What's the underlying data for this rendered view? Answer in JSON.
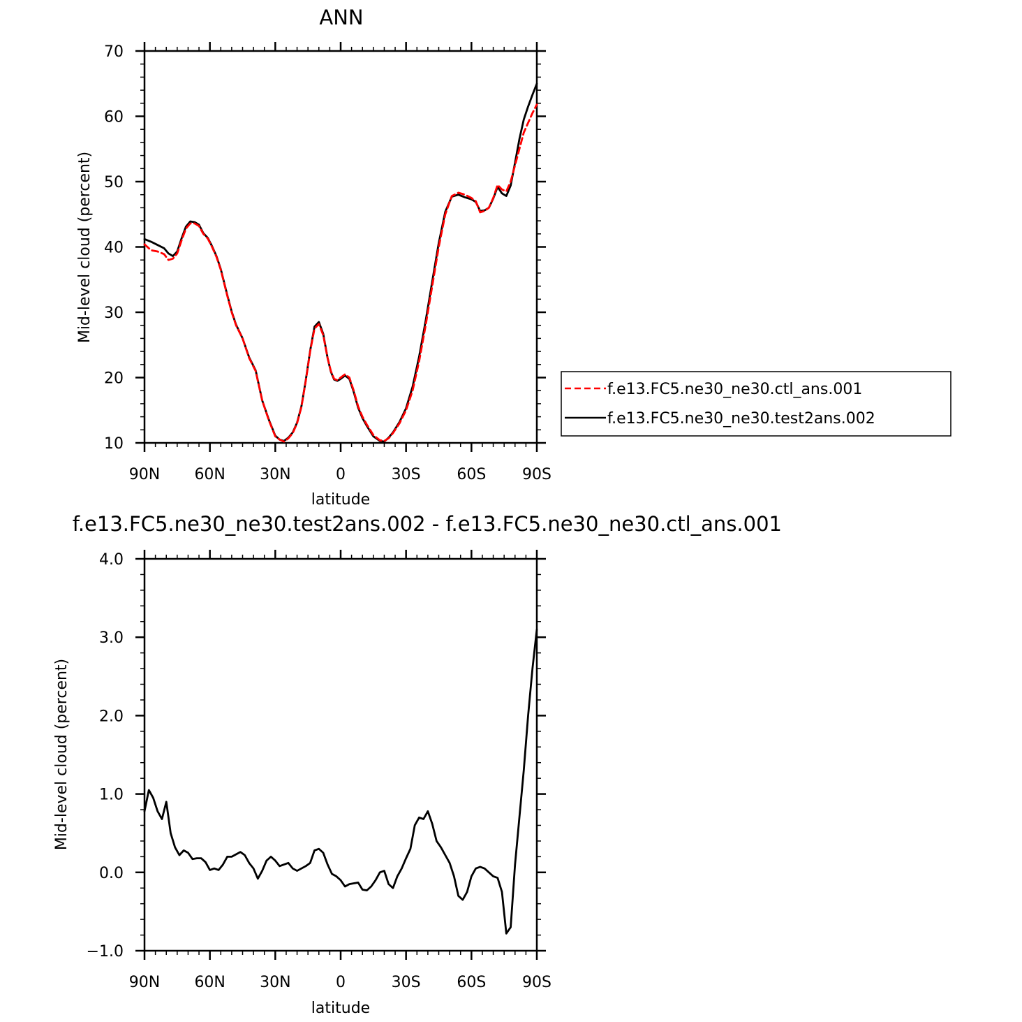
{
  "chart_data": [
    {
      "type": "line",
      "title": "ANN",
      "xlabel": "latitude",
      "ylabel": "Mid-level cloud (percent)",
      "xlim": [
        90,
        -90
      ],
      "ylim": [
        10,
        70
      ],
      "xticks": [
        90,
        60,
        30,
        0,
        -30,
        -60,
        -90
      ],
      "xtick_labels": [
        "90N",
        "60N",
        "30N",
        "0",
        "30S",
        "60S",
        "90S"
      ],
      "yticks": [
        10,
        20,
        30,
        40,
        50,
        60,
        70
      ],
      "ytick_labels": [
        "10",
        "20",
        "30",
        "40",
        "50",
        "60",
        "70"
      ],
      "grid": false,
      "legend_position": "right",
      "series": [
        {
          "name": "f.e13.FC5.ne30_ne30.ctl_ans.001",
          "color": "#ff0000",
          "dash": "dashed",
          "x": [
            90,
            87,
            84,
            81,
            79,
            77,
            75,
            73,
            71,
            69,
            67,
            65,
            63,
            61,
            59,
            57,
            55,
            52,
            50,
            48,
            45,
            42,
            39,
            36,
            33,
            30,
            28,
            26,
            24,
            22,
            20,
            18,
            16,
            14,
            12,
            10,
            8,
            6,
            4.5,
            3,
            1.5,
            0,
            -2,
            -4,
            -6,
            -8,
            -10,
            -12,
            -15,
            -18,
            -20,
            -22,
            -24,
            -27,
            -30,
            -33,
            -36,
            -39,
            -42,
            -45,
            -48,
            -51,
            -54,
            -57,
            -60,
            -62,
            -64,
            -66,
            -68,
            -70,
            -72,
            -74,
            -76,
            -78,
            -80,
            -82,
            -84,
            -86,
            -88,
            -90
          ],
          "y": [
            40.4,
            39.5,
            39.3,
            38.9,
            38.0,
            38.2,
            39.0,
            41.0,
            42.8,
            43.6,
            43.6,
            43.2,
            42.0,
            41.3,
            40.0,
            38.5,
            36.5,
            32.5,
            30.0,
            28.0,
            26.0,
            23.0,
            21.0,
            16.5,
            13.5,
            11.0,
            10.5,
            10.2,
            10.7,
            11.5,
            13.0,
            15.5,
            19.5,
            24.0,
            27.5,
            28.2,
            26.5,
            23.0,
            21.0,
            19.8,
            19.6,
            20.0,
            20.5,
            20.0,
            18.0,
            15.6,
            14.0,
            12.8,
            11.2,
            10.4,
            10.3,
            10.7,
            11.5,
            13.0,
            15.0,
            18.0,
            22.5,
            28.0,
            34.0,
            40.0,
            45.0,
            47.8,
            48.3,
            48.0,
            47.5,
            47.0,
            45.3,
            45.5,
            46.0,
            47.5,
            49.5,
            48.8,
            48.5,
            50.0,
            52.5,
            55.0,
            57.5,
            59.0,
            60.5,
            61.8
          ]
        },
        {
          "name": "f.e13.FC5.ne30_ne30.test2ans.002",
          "color": "#000000",
          "dash": "solid",
          "x": [
            90,
            87,
            84,
            81,
            79,
            77,
            75,
            73,
            71,
            69,
            67,
            65,
            63,
            61,
            59,
            57,
            55,
            52,
            50,
            48,
            45,
            42,
            39,
            36,
            33,
            30,
            28,
            26,
            24,
            22,
            20,
            18,
            16,
            14,
            12,
            10,
            8,
            6,
            4.5,
            3,
            1.5,
            0,
            -2,
            -4,
            -6,
            -8,
            -10,
            -12,
            -15,
            -18,
            -20,
            -22,
            -24,
            -27,
            -30,
            -33,
            -36,
            -39,
            -42,
            -45,
            -48,
            -51,
            -54,
            -57,
            -60,
            -62,
            -64,
            -66,
            -68,
            -70,
            -72,
            -74,
            -76,
            -78,
            -80,
            -82,
            -84,
            -86,
            -88,
            -90
          ],
          "y": [
            41.2,
            40.8,
            40.3,
            39.8,
            39.0,
            38.6,
            39.3,
            41.3,
            43.1,
            43.9,
            43.8,
            43.4,
            42.1,
            41.4,
            40.1,
            38.6,
            36.6,
            32.6,
            30.1,
            28.1,
            26.0,
            23.1,
            21.1,
            16.5,
            13.6,
            11.1,
            10.5,
            10.3,
            10.8,
            11.6,
            13.1,
            15.6,
            19.6,
            24.1,
            27.8,
            28.5,
            26.7,
            23.0,
            20.9,
            19.7,
            19.5,
            19.8,
            20.3,
            19.8,
            17.8,
            15.4,
            13.8,
            12.6,
            11.0,
            10.3,
            10.2,
            10.8,
            11.6,
            13.2,
            15.3,
            18.6,
            23.2,
            28.7,
            34.7,
            40.6,
            45.4,
            47.7,
            48.0,
            47.6,
            47.3,
            46.9,
            45.5,
            45.6,
            46.0,
            47.4,
            49.2,
            48.2,
            47.8,
            49.4,
            52.9,
            56.5,
            59.5,
            61.5,
            63.3,
            65.0
          ]
        }
      ]
    },
    {
      "type": "line",
      "title": "f.e13.FC5.ne30_ne30.test2ans.002 - f.e13.FC5.ne30_ne30.ctl_ans.001",
      "xlabel": "latitude",
      "ylabel": "Mid-level cloud (percent)",
      "xlim": [
        90,
        -90
      ],
      "ylim": [
        -1.0,
        4.0
      ],
      "xticks": [
        90,
        60,
        30,
        0,
        -30,
        -60,
        -90
      ],
      "xtick_labels": [
        "90N",
        "60N",
        "30N",
        "0",
        "30S",
        "60S",
        "90S"
      ],
      "yticks": [
        -1.0,
        0.0,
        1.0,
        2.0,
        3.0,
        4.0
      ],
      "ytick_labels": [
        "−1.0",
        "0.0",
        "1.0",
        "2.0",
        "3.0",
        "4.0"
      ],
      "grid": false,
      "series": [
        {
          "color": "#000000",
          "x": [
            90,
            88,
            86,
            84,
            82,
            80,
            78,
            76,
            74,
            72,
            70,
            68,
            66,
            64,
            62,
            60,
            58,
            56,
            54,
            52,
            50,
            48,
            46,
            44,
            42,
            40,
            38,
            36,
            34,
            32,
            30,
            28,
            26,
            24,
            22,
            20,
            18,
            16,
            14,
            12,
            10,
            8,
            6,
            4,
            2,
            0,
            -2,
            -4,
            -6,
            -8,
            -10,
            -12,
            -14,
            -16,
            -18,
            -20,
            -22,
            -24,
            -26,
            -28,
            -30,
            -32,
            -34,
            -36,
            -38,
            -40,
            -42,
            -44,
            -46,
            -48,
            -50,
            -52,
            -54,
            -56,
            -58,
            -60,
            -62,
            -64,
            -66,
            -68,
            -70,
            -72,
            -74,
            -76,
            -78,
            -80,
            -82,
            -84,
            -86,
            -88,
            -90
          ],
          "y": [
            0.78,
            1.05,
            0.95,
            0.78,
            0.68,
            0.9,
            0.5,
            0.32,
            0.22,
            0.28,
            0.25,
            0.17,
            0.18,
            0.18,
            0.13,
            0.03,
            0.05,
            0.03,
            0.1,
            0.2,
            0.2,
            0.23,
            0.26,
            0.22,
            0.12,
            0.05,
            -0.08,
            0.02,
            0.15,
            0.2,
            0.15,
            0.08,
            0.1,
            0.12,
            0.05,
            0.02,
            0.05,
            0.08,
            0.12,
            0.28,
            0.3,
            0.25,
            0.1,
            -0.02,
            -0.05,
            -0.1,
            -0.18,
            -0.15,
            -0.14,
            -0.13,
            -0.22,
            -0.23,
            -0.18,
            -0.1,
            0.0,
            0.02,
            -0.15,
            -0.2,
            -0.05,
            0.05,
            0.18,
            0.3,
            0.6,
            0.7,
            0.68,
            0.78,
            0.62,
            0.4,
            0.32,
            0.22,
            0.12,
            -0.05,
            -0.3,
            -0.35,
            -0.25,
            -0.05,
            0.05,
            0.07,
            0.05,
            0.0,
            -0.05,
            -0.07,
            -0.25,
            -0.78,
            -0.7,
            0.1,
            0.7,
            1.3,
            2.0,
            2.6,
            3.1
          ]
        }
      ]
    }
  ]
}
